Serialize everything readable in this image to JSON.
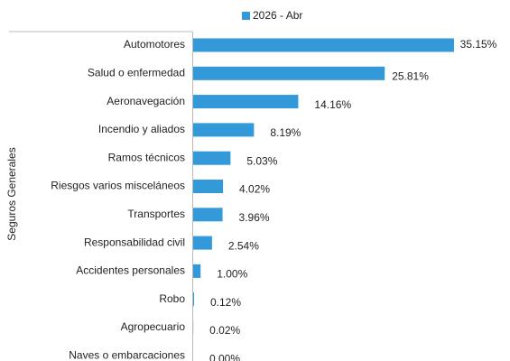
{
  "chart_data": {
    "type": "bar",
    "orientation": "horizontal",
    "group_label": "Seguros Generales",
    "categories": [
      "Automotores",
      "Salud o enfermedad",
      "Aeronavegación",
      "Incendio y aliados",
      "Ramos técnicos",
      "Riesgos varios misceláneos",
      "Transportes",
      "Responsabilidad civil",
      "Accidentes personales",
      "Robo",
      "Agropecuario",
      "Naves o embarcaciones"
    ],
    "series": [
      {
        "name": "2026 - Abr",
        "color": "#3399d9",
        "values": [
          35.15,
          25.81,
          14.16,
          8.19,
          5.03,
          4.02,
          3.96,
          2.54,
          1.0,
          0.12,
          0.02,
          0.0
        ],
        "value_labels": [
          "35.15%",
          "25.81%",
          "14.16%",
          "8.19%",
          "5.03%",
          "4.02%",
          "3.96%",
          "2.54%",
          "1.00%",
          "0.12%",
          "0.02%",
          "0.00%"
        ]
      }
    ]
  }
}
